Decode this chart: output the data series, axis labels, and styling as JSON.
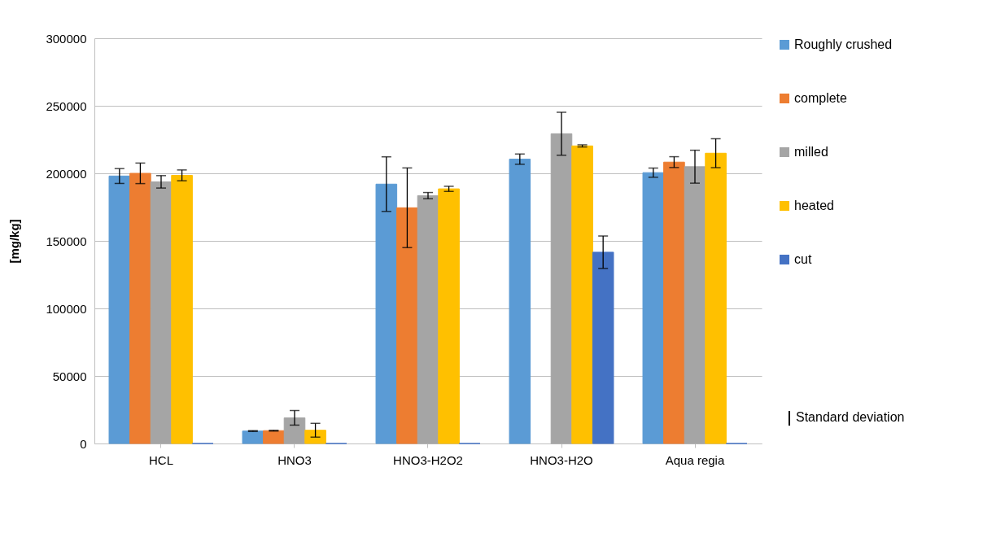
{
  "chart_data": {
    "type": "bar",
    "ylabel": "[mg/kg]",
    "categories": [
      "HCL",
      "HNO3",
      "HNO3-H2O2",
      "HNO3-H2O",
      "Aqua regia"
    ],
    "series": [
      {
        "name": "Roughly crushed",
        "color": "#5b9bd5",
        "values": [
          198000,
          9200,
          192000,
          210500,
          200500
        ],
        "errors": [
          5500,
          300,
          20200,
          3800,
          3400
        ]
      },
      {
        "name": "complete",
        "color": "#ed7d31",
        "values": [
          200000,
          9500,
          174500,
          null,
          208300
        ],
        "errors": [
          7600,
          300,
          29500,
          null,
          4000
        ]
      },
      {
        "name": "milled",
        "color": "#a5a5a5",
        "values": [
          193700,
          19000,
          183500,
          229300,
          204900
        ],
        "errors": [
          4600,
          5400,
          2300,
          15900,
          12200
        ]
      },
      {
        "name": "heated",
        "color": "#ffc000",
        "values": [
          198500,
          9800,
          188500,
          220300,
          214900
        ],
        "errors": [
          4000,
          5100,
          1900,
          800,
          10700
        ]
      },
      {
        "name": "cut",
        "color": "#4472c4",
        "values": [
          0,
          0,
          0,
          141600,
          0
        ],
        "errors": [
          null,
          null,
          null,
          12000,
          null
        ]
      }
    ],
    "ylim": [
      0,
      300000
    ],
    "yticks": [
      0,
      50000,
      100000,
      150000,
      200000,
      250000,
      300000
    ],
    "grid": "y",
    "legend": "right",
    "annotations": [
      "Standard deviation"
    ]
  }
}
